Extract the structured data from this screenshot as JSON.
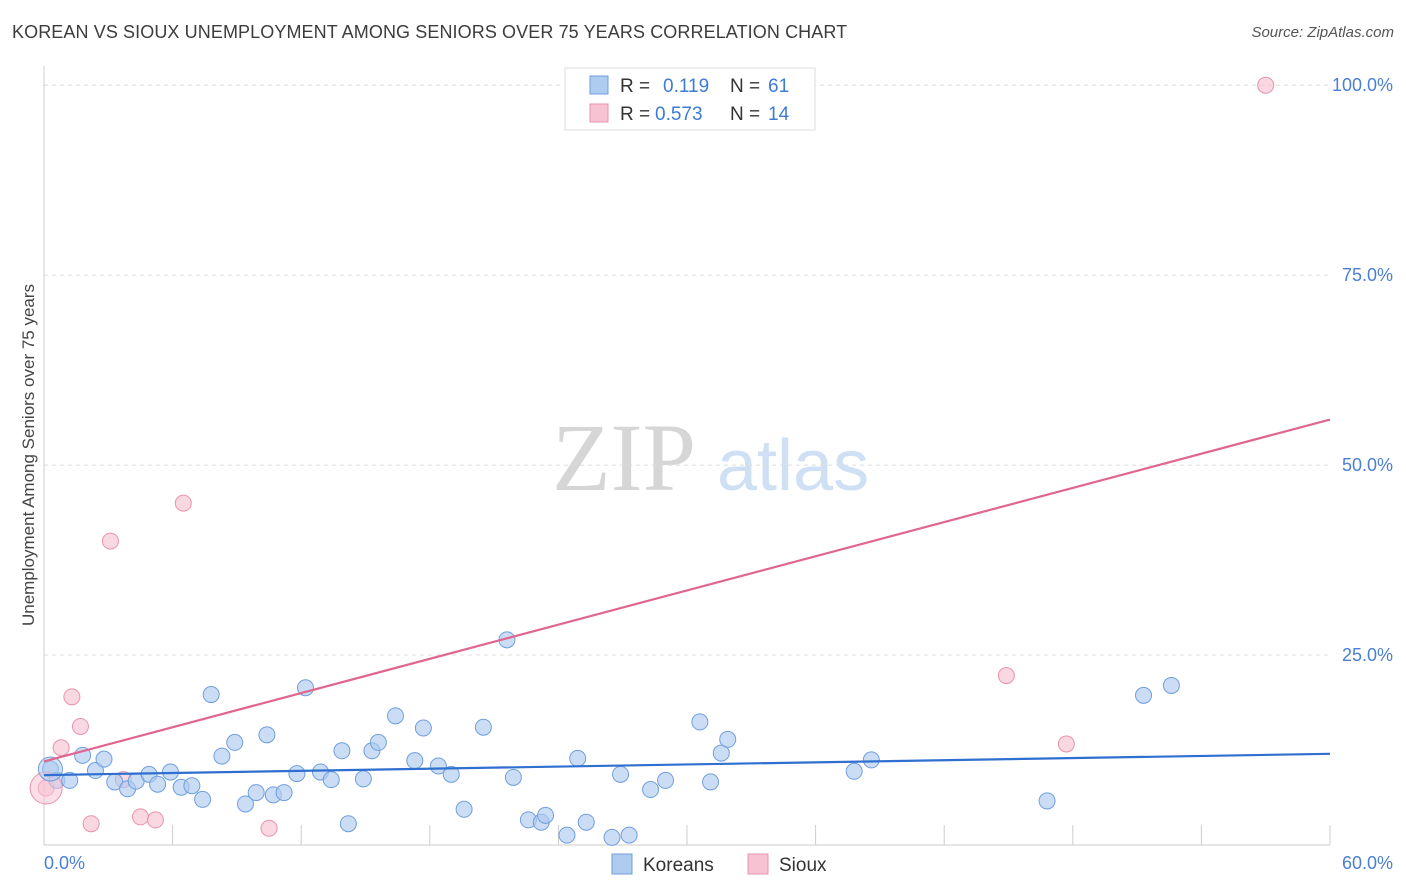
{
  "title": "KOREAN VS SIOUX UNEMPLOYMENT AMONG SENIORS OVER 75 YEARS CORRELATION CHART",
  "source": "Source: ZipAtlas.com",
  "watermark": {
    "zip": "ZIP",
    "atlas": "atlas"
  },
  "colors": {
    "korean_fill": "#aecbf0",
    "korean_stroke": "#6f9fdc",
    "korean_line": "#2f6fcf",
    "sioux_fill": "#f7c3d3",
    "sioux_stroke": "#e893ae",
    "sioux_line": "#e0668f",
    "tick_text": "#4a7fd4",
    "grid": "#dddddd"
  },
  "stats_legend": [
    {
      "r_label": "R =",
      "r_value": "0.119",
      "n_label": "N =",
      "n_value": "61"
    },
    {
      "r_label": "R =",
      "r_value": "0.573",
      "n_label": "N =",
      "n_value": "14"
    }
  ],
  "chart_data": {
    "type": "scatter",
    "title": "KOREAN VS SIOUX UNEMPLOYMENT AMONG SENIORS OVER 75 YEARS CORRELATION CHART",
    "xlabel": "",
    "ylabel": "Unemployment Among Seniors over 75 years",
    "xlim": [
      0,
      60
    ],
    "ylim": [
      0,
      102
    ],
    "x_tick_labels": [
      "0.0%",
      "60.0%"
    ],
    "y_ticks": [
      25,
      50,
      75,
      100
    ],
    "y_tick_labels": [
      "25.0%",
      "50.0%",
      "75.0%",
      "100.0%"
    ],
    "grid": true,
    "legend_position": "bottom-center",
    "series": [
      {
        "name": "Koreans",
        "color": "#aecbf0",
        "points": [
          [
            0.3,
            10.0
          ],
          [
            0.6,
            8.5
          ],
          [
            1.2,
            8.5
          ],
          [
            1.8,
            11.8
          ],
          [
            2.4,
            9.8
          ],
          [
            2.8,
            11.3
          ],
          [
            3.3,
            8.3
          ],
          [
            3.9,
            7.4
          ],
          [
            4.3,
            8.4
          ],
          [
            4.9,
            9.3
          ],
          [
            5.3,
            8.0
          ],
          [
            5.9,
            9.6
          ],
          [
            6.4,
            7.6
          ],
          [
            6.9,
            7.8
          ],
          [
            7.4,
            6.0
          ],
          [
            7.8,
            19.8
          ],
          [
            8.3,
            11.7
          ],
          [
            8.9,
            13.5
          ],
          [
            9.4,
            5.4
          ],
          [
            9.9,
            6.9
          ],
          [
            10.4,
            14.5
          ],
          [
            10.7,
            6.6
          ],
          [
            11.2,
            6.9
          ],
          [
            11.8,
            9.4
          ],
          [
            12.2,
            20.7
          ],
          [
            12.9,
            9.6
          ],
          [
            13.4,
            8.6
          ],
          [
            13.9,
            12.4
          ],
          [
            14.2,
            2.8
          ],
          [
            14.9,
            8.7
          ],
          [
            15.3,
            12.4
          ],
          [
            15.6,
            13.5
          ],
          [
            16.4,
            17.0
          ],
          [
            17.3,
            11.1
          ],
          [
            17.7,
            15.4
          ],
          [
            18.4,
            10.4
          ],
          [
            19.0,
            9.3
          ],
          [
            19.6,
            4.7
          ],
          [
            20.5,
            15.5
          ],
          [
            21.6,
            27.0
          ],
          [
            21.9,
            8.9
          ],
          [
            22.6,
            3.3
          ],
          [
            23.2,
            3.0
          ],
          [
            23.4,
            3.9
          ],
          [
            24.4,
            1.3
          ],
          [
            24.9,
            11.4
          ],
          [
            25.3,
            3.0
          ],
          [
            26.5,
            1.0
          ],
          [
            26.9,
            9.3
          ],
          [
            27.3,
            1.3
          ],
          [
            28.3,
            7.3
          ],
          [
            29.0,
            8.5
          ],
          [
            30.6,
            16.2
          ],
          [
            31.1,
            8.3
          ],
          [
            31.6,
            12.1
          ],
          [
            31.9,
            13.9
          ],
          [
            37.8,
            9.7
          ],
          [
            38.6,
            11.2
          ],
          [
            46.8,
            5.8
          ],
          [
            51.3,
            19.7
          ],
          [
            52.6,
            21.0
          ]
        ]
      },
      {
        "name": "Sioux",
        "color": "#f7c3d3",
        "points": [
          [
            0.1,
            7.5
          ],
          [
            0.8,
            12.8
          ],
          [
            1.3,
            19.5
          ],
          [
            1.7,
            15.6
          ],
          [
            2.2,
            2.8
          ],
          [
            3.1,
            40.0
          ],
          [
            3.7,
            8.6
          ],
          [
            4.5,
            3.7
          ],
          [
            5.2,
            3.3
          ],
          [
            6.5,
            45.0
          ],
          [
            10.5,
            2.2
          ],
          [
            44.9,
            22.3
          ],
          [
            47.7,
            13.3
          ],
          [
            57.0,
            100.0
          ]
        ]
      }
    ],
    "trend_lines": [
      {
        "name": "Koreans",
        "color": "#2f6fcf",
        "x": [
          0,
          60
        ],
        "y": [
          9.2,
          12.0
        ]
      },
      {
        "name": "Sioux",
        "color": "#e0668f",
        "x": [
          0,
          60
        ],
        "y": [
          11.0,
          56.0
        ]
      }
    ]
  }
}
